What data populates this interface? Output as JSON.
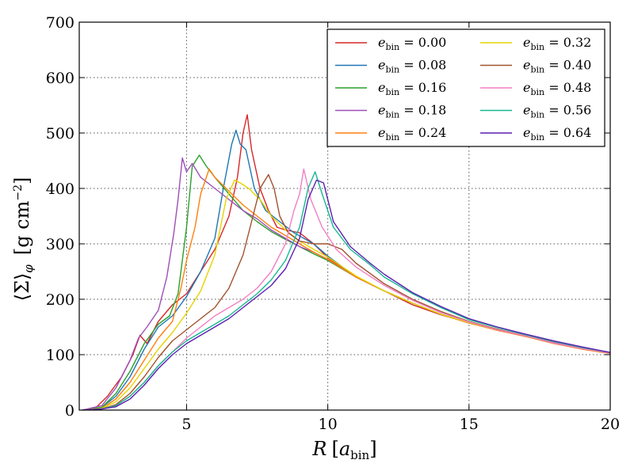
{
  "chart_data": {
    "type": "line",
    "title": "",
    "xlabel": "R [a_bin]",
    "ylabel": "⟨Σ⟩_φ [g cm^-2]",
    "xlim": [
      1.2,
      20
    ],
    "ylim": [
      0,
      700
    ],
    "xticks": [
      5,
      10,
      15,
      20
    ],
    "yticks": [
      0,
      100,
      200,
      300,
      400,
      500,
      600,
      700
    ],
    "grid": true,
    "legend_position": "top-right",
    "legend_columns": 2,
    "series": [
      {
        "name": "e_bin = 0.00",
        "label": "e",
        "sub": "bin",
        "eq": " = 0.00",
        "color": "#d62728",
        "x": [
          1.3,
          1.8,
          2.2,
          2.7,
          3.1,
          3.35,
          3.6,
          4.0,
          4.5,
          5.0,
          5.5,
          6.0,
          6.5,
          6.8,
          7.0,
          7.15,
          7.3,
          7.6,
          7.9,
          8.2,
          8.5,
          9.0,
          9.5,
          10,
          11,
          12,
          13,
          14,
          15,
          16,
          17,
          18,
          19,
          20
        ],
        "values": [
          0,
          5,
          25,
          60,
          100,
          135,
          120,
          160,
          190,
          210,
          250,
          290,
          350,
          420,
          500,
          533,
          470,
          400,
          360,
          330,
          325,
          320,
          300,
          275,
          240,
          215,
          190,
          172,
          158,
          144,
          133,
          122,
          112,
          103
        ]
      },
      {
        "name": "e_bin = 0.08",
        "label": "e",
        "sub": "bin",
        "eq": " = 0.08",
        "color": "#1f77b4",
        "x": [
          1.3,
          2.0,
          2.5,
          3.0,
          3.5,
          4.0,
          4.5,
          5.0,
          5.5,
          6.0,
          6.3,
          6.6,
          6.75,
          6.9,
          7.1,
          7.4,
          7.8,
          8.3,
          8.8,
          9.5,
          10,
          11,
          12,
          13,
          14,
          15,
          16,
          17,
          18,
          19,
          20
        ],
        "values": [
          0,
          5,
          25,
          60,
          110,
          150,
          170,
          205,
          250,
          310,
          400,
          480,
          505,
          480,
          470,
          400,
          360,
          340,
          320,
          300,
          278,
          240,
          215,
          193,
          173,
          158,
          146,
          134,
          122,
          112,
          104
        ]
      },
      {
        "name": "e_bin = 0.16",
        "label": "e",
        "sub": "bin",
        "eq": " = 0.16",
        "color": "#2ca02c",
        "x": [
          1.3,
          2.0,
          2.5,
          3.0,
          3.5,
          4.0,
          4.4,
          4.7,
          5.0,
          5.2,
          5.45,
          5.7,
          6.0,
          6.5,
          7.0,
          7.5,
          8.0,
          8.5,
          9.0,
          9.5,
          10,
          11,
          12,
          13,
          14,
          15,
          16,
          17,
          18,
          19,
          20
        ],
        "values": [
          0,
          5,
          30,
          70,
          120,
          155,
          170,
          210,
          330,
          440,
          460,
          440,
          420,
          390,
          360,
          340,
          322,
          308,
          295,
          282,
          270,
          240,
          215,
          193,
          173,
          157,
          145,
          134,
          122,
          112,
          103
        ]
      },
      {
        "name": "e_bin = 0.18",
        "label": "e",
        "sub": "bin",
        "eq": " = 0.18",
        "color": "#9e4fb8",
        "x": [
          1.3,
          2.0,
          2.5,
          3.0,
          3.3,
          3.6,
          4.0,
          4.3,
          4.55,
          4.7,
          4.85,
          5.0,
          5.2,
          5.5,
          6.0,
          6.5,
          7.0,
          7.5,
          8.0,
          8.5,
          9.0,
          9.5,
          10,
          11,
          12,
          13,
          14,
          15,
          16,
          17,
          18,
          19,
          20
        ],
        "values": [
          0,
          8,
          40,
          90,
          130,
          150,
          180,
          240,
          320,
          380,
          455,
          430,
          445,
          420,
          400,
          380,
          360,
          345,
          325,
          310,
          295,
          285,
          272,
          240,
          215,
          193,
          173,
          157,
          145,
          134,
          122,
          112,
          103
        ]
      },
      {
        "name": "e_bin = 0.24",
        "label": "e",
        "sub": "bin",
        "eq": " = 0.24",
        "color": "#ff7f0e",
        "x": [
          1.3,
          2.0,
          2.5,
          3.0,
          3.5,
          4.0,
          4.5,
          4.8,
          5.0,
          5.3,
          5.5,
          5.8,
          6.0,
          6.5,
          7.0,
          7.5,
          8.0,
          8.5,
          9.0,
          9.5,
          10,
          11,
          12,
          13,
          14,
          15,
          16,
          17,
          18,
          19,
          20
        ],
        "values": [
          0,
          3,
          20,
          50,
          90,
          130,
          160,
          220,
          270,
          330,
          390,
          435,
          420,
          395,
          370,
          350,
          330,
          315,
          300,
          285,
          272,
          240,
          215,
          193,
          173,
          157,
          144,
          133,
          120,
          110,
          102
        ]
      },
      {
        "name": "e_bin = 0.32",
        "label": "e",
        "sub": "bin",
        "eq": " = 0.32",
        "color": "#e6d300",
        "x": [
          1.3,
          2.0,
          2.5,
          3.0,
          3.5,
          4.0,
          4.5,
          5.0,
          5.5,
          6.0,
          6.4,
          6.7,
          6.9,
          7.2,
          7.6,
          8.0,
          8.5,
          9.0,
          9.5,
          10,
          11,
          12,
          13,
          14,
          15,
          16,
          17,
          18,
          19,
          20
        ],
        "values": [
          0,
          3,
          15,
          40,
          75,
          110,
          140,
          175,
          215,
          280,
          380,
          415,
          410,
          400,
          380,
          350,
          325,
          305,
          290,
          276,
          242,
          215,
          193,
          173,
          158,
          145,
          134,
          121,
          111,
          103
        ]
      },
      {
        "name": "e_bin = 0.40",
        "label": "e",
        "sub": "bin",
        "eq": " = 0.40",
        "color": "#a0522d",
        "x": [
          1.3,
          2.0,
          2.5,
          3.0,
          3.5,
          4.0,
          4.5,
          5.0,
          5.5,
          6.0,
          6.5,
          7.0,
          7.3,
          7.6,
          7.9,
          8.1,
          8.3,
          8.6,
          9.0,
          9.5,
          10,
          10.5,
          11,
          12,
          13,
          14,
          15,
          16,
          17,
          18,
          19,
          20
        ],
        "values": [
          0,
          2,
          10,
          30,
          60,
          95,
          125,
          145,
          165,
          185,
          220,
          280,
          340,
          400,
          425,
          400,
          350,
          320,
          305,
          300,
          300,
          290,
          265,
          228,
          200,
          178,
          160,
          146,
          134,
          121,
          111,
          103
        ]
      },
      {
        "name": "e_bin = 0.48",
        "label": "e",
        "sub": "bin",
        "eq": " = 0.48",
        "color": "#f27fc5",
        "x": [
          1.3,
          2.0,
          2.5,
          3.0,
          3.5,
          4.0,
          4.5,
          5.0,
          5.5,
          6.0,
          6.5,
          7.0,
          7.5,
          8.0,
          8.5,
          8.8,
          9.0,
          9.15,
          9.4,
          9.8,
          10.3,
          11,
          12,
          13,
          14,
          15,
          16,
          17,
          18,
          19,
          20
        ],
        "values": [
          0,
          2,
          8,
          25,
          50,
          80,
          105,
          130,
          150,
          170,
          185,
          200,
          220,
          250,
          300,
          360,
          390,
          435,
          380,
          330,
          290,
          258,
          225,
          198,
          176,
          159,
          145,
          134,
          121,
          111,
          103
        ]
      },
      {
        "name": "e_bin = 0.56",
        "label": "e",
        "sub": "bin",
        "eq": " = 0.56",
        "color": "#17b890",
        "x": [
          1.3,
          2.0,
          2.5,
          3.0,
          3.5,
          4.0,
          4.5,
          5.0,
          5.5,
          6.0,
          6.5,
          7.0,
          7.5,
          8.0,
          8.5,
          9.0,
          9.3,
          9.55,
          9.8,
          10.2,
          10.8,
          11.5,
          12,
          13,
          14,
          15,
          16,
          17,
          18,
          19,
          20
        ],
        "values": [
          0,
          2,
          8,
          25,
          50,
          80,
          105,
          125,
          140,
          155,
          170,
          190,
          210,
          235,
          270,
          330,
          400,
          430,
          390,
          330,
          290,
          262,
          240,
          210,
          185,
          163,
          149,
          136,
          124,
          113,
          104
        ]
      },
      {
        "name": "e_bin = 0.64",
        "label": "e",
        "sub": "bin",
        "eq": " = 0.64",
        "color": "#5b1fb0",
        "x": [
          1.3,
          2.0,
          2.5,
          3.0,
          3.5,
          4.0,
          4.5,
          5.0,
          5.5,
          6.0,
          6.5,
          7.0,
          7.5,
          8.0,
          8.5,
          9.0,
          9.3,
          9.6,
          9.85,
          10.2,
          10.8,
          11.5,
          12,
          13,
          14,
          15,
          16,
          17,
          18,
          19,
          20
        ],
        "values": [
          0,
          2,
          6,
          20,
          45,
          75,
          100,
          120,
          135,
          150,
          165,
          185,
          205,
          225,
          255,
          310,
          380,
          415,
          410,
          340,
          295,
          265,
          245,
          212,
          187,
          165,
          150,
          137,
          125,
          114,
          104
        ]
      }
    ]
  }
}
